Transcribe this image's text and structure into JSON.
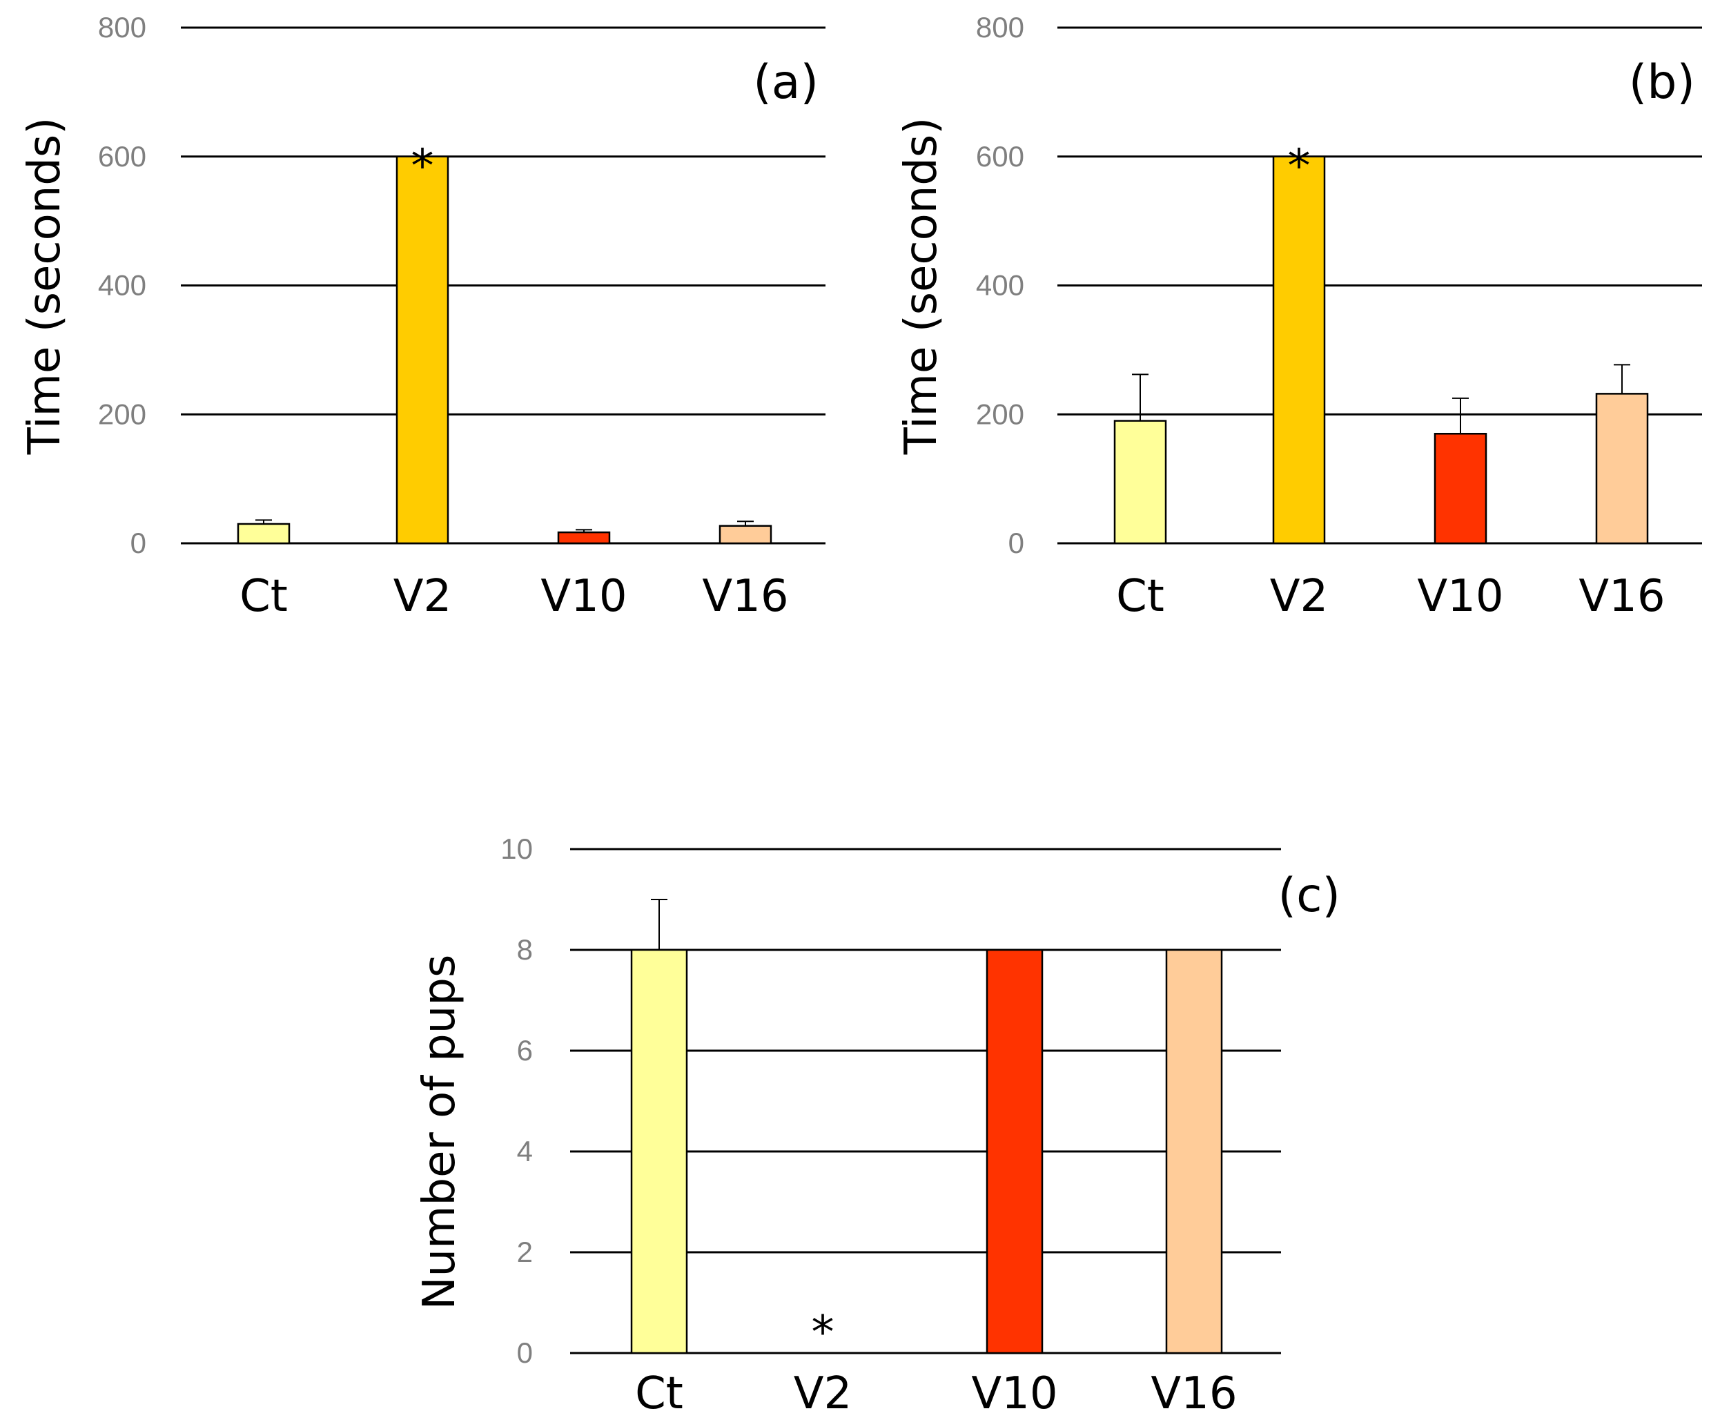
{
  "chart_data": [
    {
      "id": "a",
      "type": "bar",
      "panel_label": "(a)",
      "ylabel": "Time (seconds)",
      "xlabel": "",
      "ylim": [
        0,
        800
      ],
      "yticks": [
        0,
        200,
        400,
        600,
        800
      ],
      "categories": [
        "Ct",
        "V2",
        "V10",
        "V16"
      ],
      "values": [
        30,
        600,
        17,
        27
      ],
      "errors": [
        6,
        0,
        4,
        7
      ],
      "colors": [
        "#FFFF99",
        "#FFCC00",
        "#FF3300",
        "#FFCC99"
      ],
      "significance": [
        "",
        "*",
        "",
        ""
      ]
    },
    {
      "id": "b",
      "type": "bar",
      "panel_label": "(b)",
      "ylabel": "Time (seconds)",
      "xlabel": "",
      "ylim": [
        0,
        800
      ],
      "yticks": [
        0,
        200,
        400,
        600,
        800
      ],
      "categories": [
        "Ct",
        "V2",
        "V10",
        "V16"
      ],
      "values": [
        190,
        600,
        170,
        232
      ],
      "errors": [
        72,
        0,
        55,
        45
      ],
      "colors": [
        "#FFFF99",
        "#FFCC00",
        "#FF3300",
        "#FFCC99"
      ],
      "significance": [
        "",
        "*",
        "",
        ""
      ]
    },
    {
      "id": "c",
      "type": "bar",
      "panel_label": "(c)",
      "ylabel": "Number of pups",
      "xlabel": "",
      "ylim": [
        0,
        10
      ],
      "yticks": [
        0,
        2,
        4,
        6,
        8,
        10
      ],
      "categories": [
        "Ct",
        "V2",
        "V10",
        "V16"
      ],
      "values": [
        8,
        0,
        8,
        8
      ],
      "errors": [
        1,
        0,
        0,
        0
      ],
      "colors": [
        "#FFFF99",
        "#FFCC00",
        "#FF3300",
        "#FFCC99"
      ],
      "significance": [
        "",
        "*",
        "",
        ""
      ]
    }
  ]
}
